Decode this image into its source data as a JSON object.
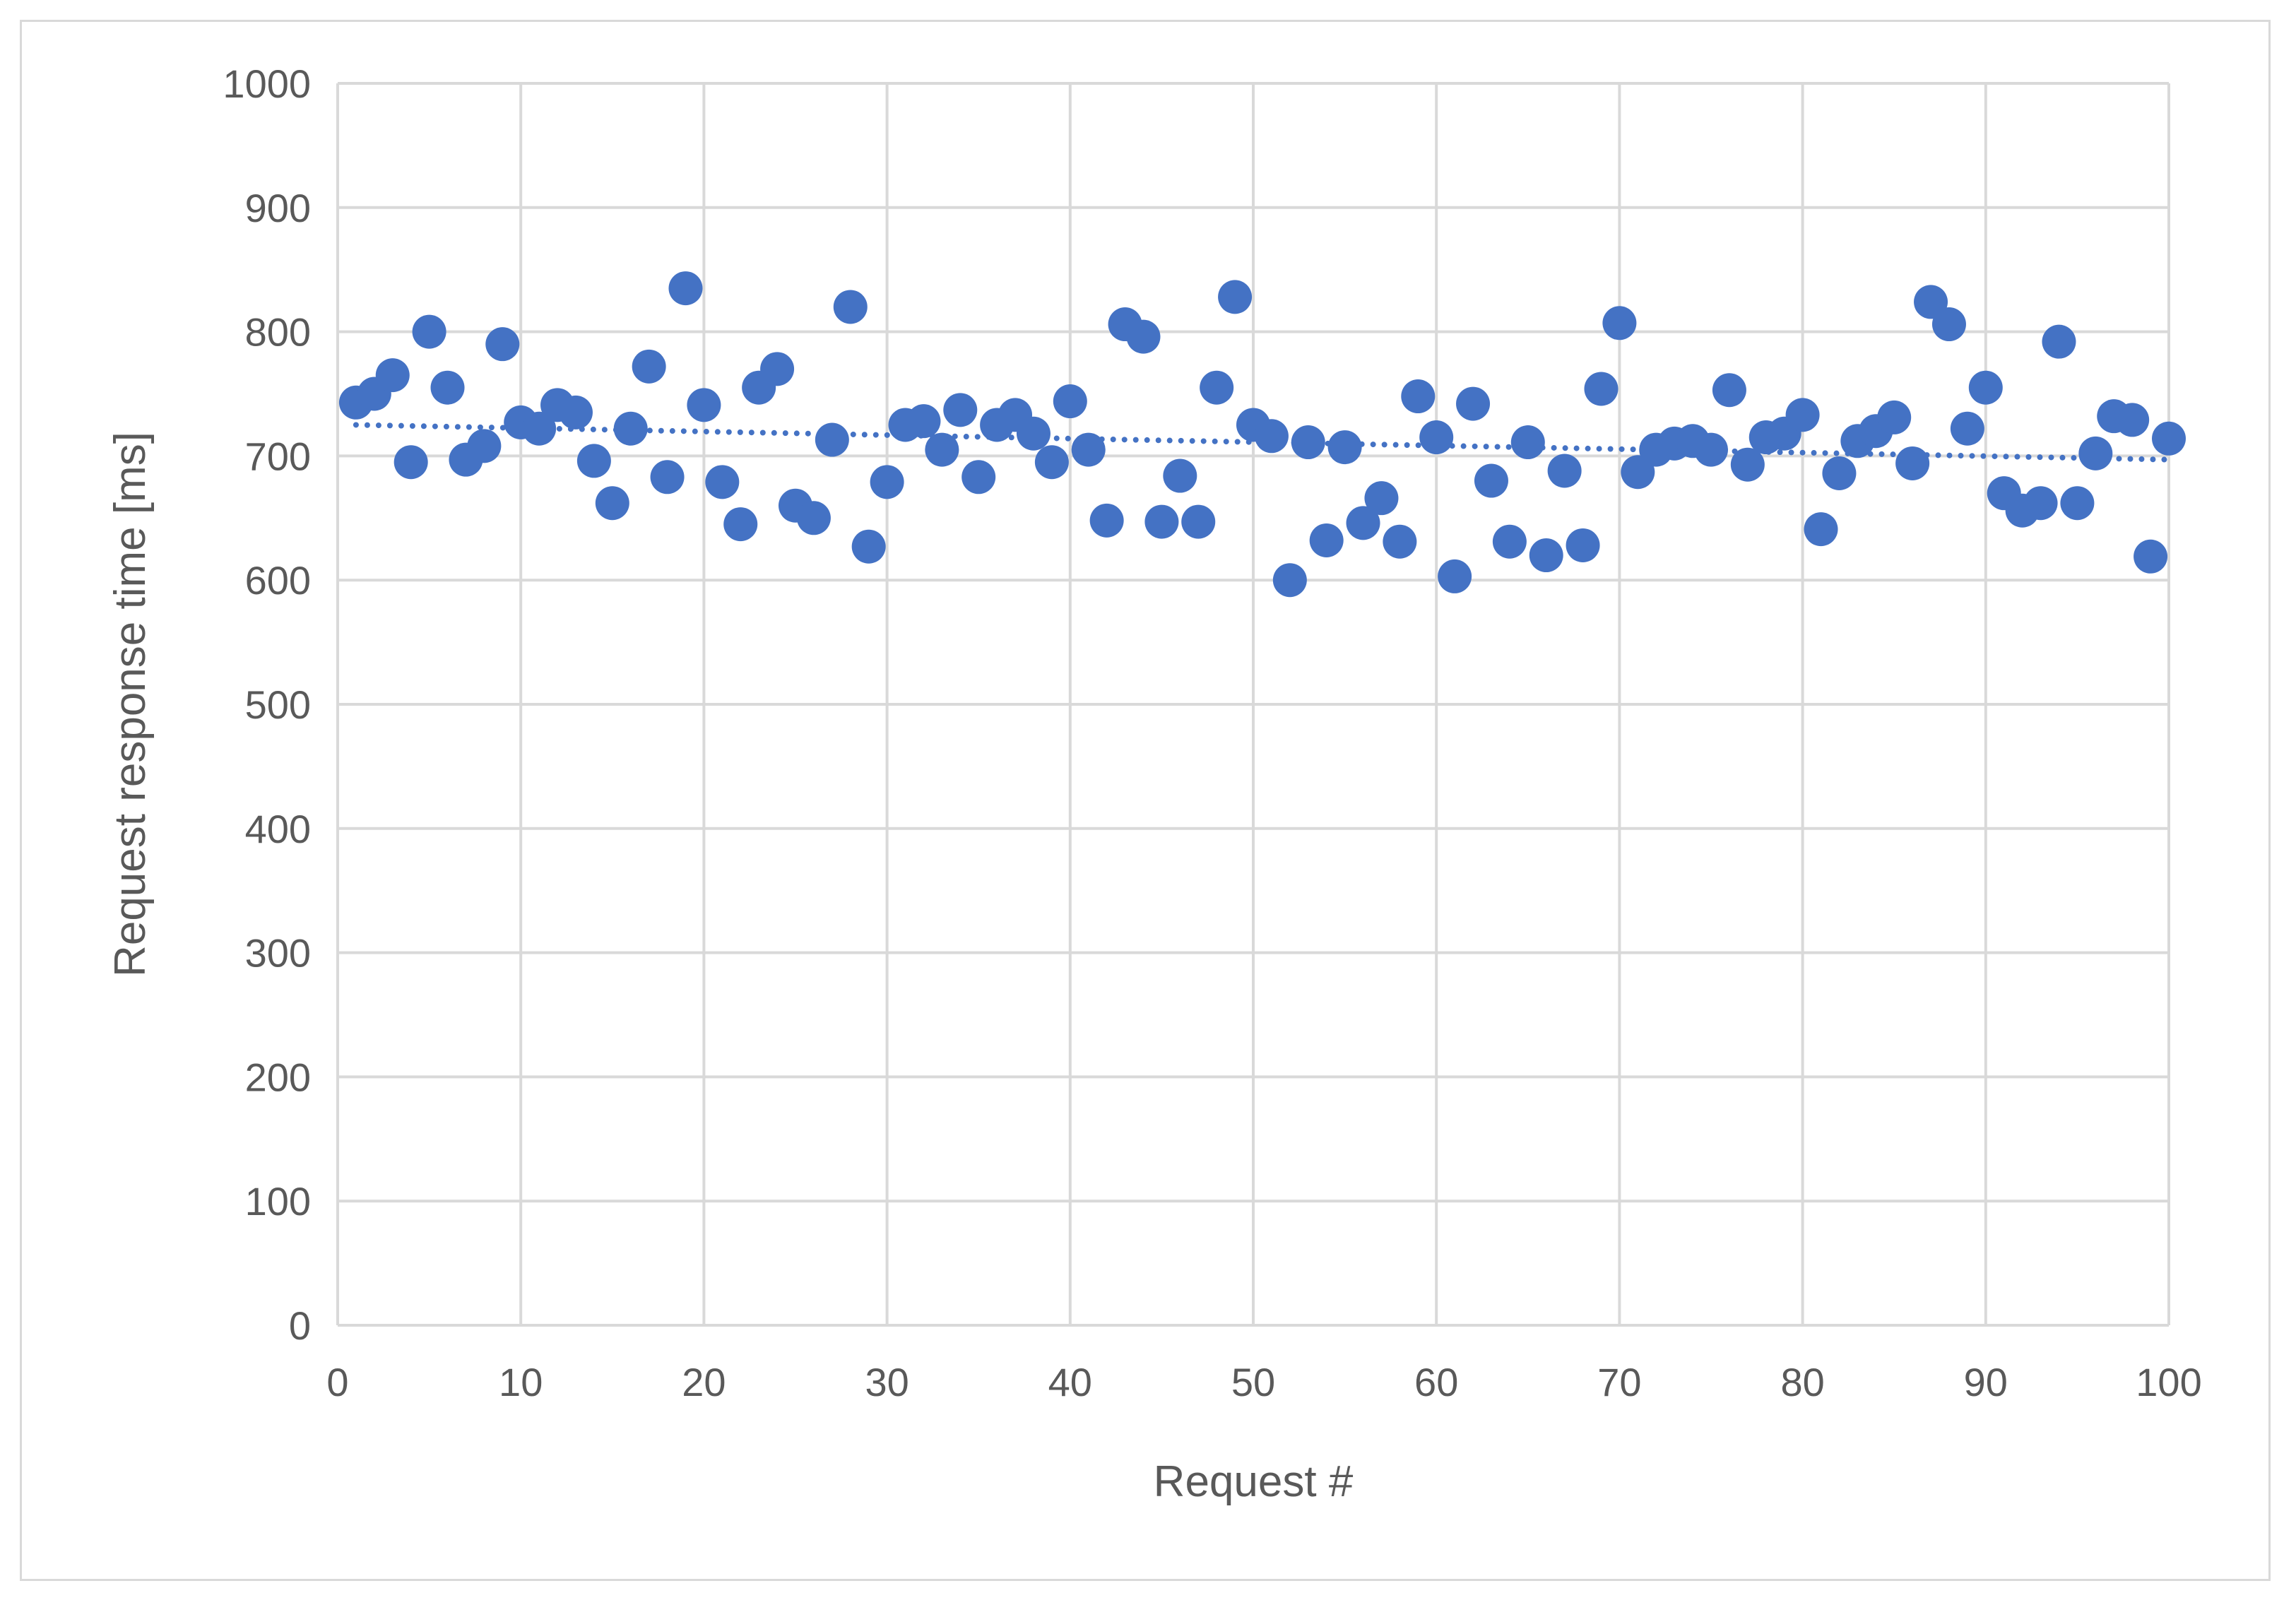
{
  "colors": {
    "marker": "#4472c4",
    "grid": "#d9d9d9",
    "text": "#595959",
    "frame": "#d9d9d9"
  },
  "chart_data": {
    "type": "scatter",
    "title": "",
    "xlabel": "Request #",
    "ylabel": "Request response time [ms]",
    "xlim": [
      0,
      100
    ],
    "ylim": [
      0,
      1000
    ],
    "xticks": [
      0,
      10,
      20,
      30,
      40,
      50,
      60,
      70,
      80,
      90,
      100
    ],
    "yticks": [
      0,
      100,
      200,
      300,
      400,
      500,
      600,
      700,
      800,
      900,
      1000
    ],
    "grid": true,
    "legend": "none",
    "trendline": {
      "type": "linear",
      "style": "dotted",
      "from": [
        1,
        725
      ],
      "to": [
        100,
        697
      ]
    },
    "series": [
      {
        "x": [
          1,
          2,
          3,
          4,
          5,
          6,
          7,
          8,
          9,
          10,
          11,
          12,
          13,
          14,
          15,
          16,
          17,
          18,
          19,
          20,
          21,
          22,
          23,
          24,
          25,
          26,
          27,
          28,
          29,
          30,
          31,
          32,
          33,
          34,
          35,
          36,
          37,
          38,
          39,
          40,
          41,
          42,
          43,
          44,
          45,
          46,
          47,
          48,
          49,
          50,
          51,
          52,
          53,
          54,
          55,
          56,
          57,
          58,
          59,
          60,
          61,
          62,
          63,
          64,
          65,
          66,
          67,
          68,
          69,
          70,
          71,
          72,
          73,
          74,
          75,
          76,
          77,
          78,
          79,
          80,
          81,
          82,
          83,
          84,
          85,
          86,
          87,
          88,
          89,
          90,
          91,
          92,
          93,
          94,
          95,
          96,
          97,
          98,
          99,
          100
        ],
        "y": [
          743,
          750,
          765,
          695,
          800,
          755,
          697,
          708,
          790,
          727,
          722,
          741,
          735,
          696,
          662,
          722,
          772,
          683,
          835,
          741,
          679,
          645,
          755,
          770,
          660,
          650,
          713,
          820,
          627,
          679,
          725,
          728,
          705,
          737,
          683,
          725,
          733,
          718,
          695,
          744,
          705,
          648,
          806,
          796,
          647,
          684,
          647,
          755,
          828,
          725,
          716,
          600,
          711,
          632,
          707,
          646,
          666,
          631,
          748,
          715,
          603,
          742,
          680,
          631,
          711,
          620,
          688,
          628,
          754,
          807,
          687,
          705,
          710,
          712,
          705,
          753,
          693,
          715,
          718,
          733,
          641,
          686,
          712,
          720,
          731,
          694,
          824,
          806,
          722,
          755,
          670,
          656,
          662,
          792,
          662,
          702,
          732,
          729,
          619,
          714
        ]
      }
    ]
  }
}
